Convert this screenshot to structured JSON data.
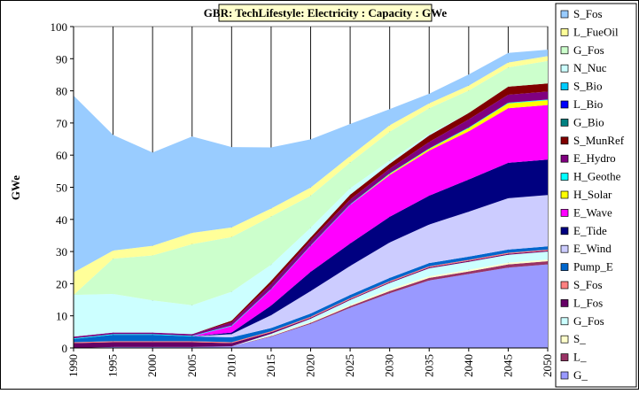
{
  "chart_data": {
    "type": "stacked_area",
    "title": "GBR: TechLifestyle: Electricity : Capacity : GWe",
    "y_label": "GWe",
    "x": [
      1990,
      1995,
      2000,
      2005,
      2010,
      2015,
      2020,
      2025,
      2030,
      2035,
      2040,
      2045,
      2050
    ],
    "xlim": [
      1990,
      2050
    ],
    "ylim": [
      0,
      100
    ],
    "yticks": [
      0,
      10,
      20,
      30,
      40,
      50,
      60,
      70,
      80,
      90,
      100
    ],
    "grid": "x",
    "legend": "right",
    "series": [
      {
        "name": "G_",
        "color": "#9999ff",
        "values": [
          0,
          0.3,
          0.3,
          0.3,
          0.5,
          3.5,
          7.5,
          12.5,
          17,
          21,
          23,
          25,
          26
        ]
      },
      {
        "name": "L_",
        "color": "#993366",
        "values": [
          0,
          0,
          0,
          0,
          0,
          0.2,
          0.3,
          0.5,
          0.7,
          0.8,
          0.8,
          1,
          1
        ]
      },
      {
        "name": "S_",
        "color": "#ffffcc",
        "values": [
          0,
          0,
          0,
          0,
          0,
          0.2,
          0.3,
          0.4,
          0.5,
          0.5,
          0.5,
          0.5,
          0.5
        ]
      },
      {
        "name": "G_Fos",
        "color": "#ccffff",
        "values": [
          0,
          0,
          0,
          0,
          0,
          0.5,
          1,
          1.5,
          2,
          2.5,
          2.5,
          2.5,
          2.5
        ]
      },
      {
        "name": "L_Fos",
        "color": "#660066",
        "values": [
          1.5,
          1.5,
          1.5,
          1.5,
          1,
          0.5,
          0.3,
          0.3,
          0.3,
          0.3,
          0.3,
          0.3,
          0.3
        ]
      },
      {
        "name": "S_Fos",
        "color": "#ff8080",
        "values": [
          0.3,
          0.3,
          0.3,
          0.3,
          0.3,
          0.3,
          0.3,
          0.3,
          0.3,
          0.3,
          0.3,
          0.3,
          0.3
        ]
      },
      {
        "name": "Pump_E",
        "color": "#0066cc",
        "values": [
          1,
          2,
          2,
          1.5,
          1.5,
          1,
          1,
          1,
          1,
          1,
          1,
          1,
          1
        ]
      },
      {
        "name": "E_Wind",
        "color": "#ccccff",
        "values": [
          0,
          0,
          0,
          0,
          1,
          4,
          7,
          9,
          11,
          12,
          14,
          16,
          16
        ]
      },
      {
        "name": "E_Tide",
        "color": "#000080",
        "values": [
          0,
          0,
          0,
          0,
          0.5,
          3,
          6,
          7,
          8,
          9,
          10,
          11,
          11
        ]
      },
      {
        "name": "E_Wave",
        "color": "#ff00ff",
        "values": [
          0,
          0,
          0,
          0,
          2,
          5,
          8,
          12,
          13,
          14,
          15,
          17,
          17
        ]
      },
      {
        "name": "H_Solar",
        "color": "#ffff00",
        "values": [
          0,
          0,
          0,
          0,
          0,
          0,
          0,
          0,
          0.3,
          0.5,
          1,
          1.5,
          1.5
        ]
      },
      {
        "name": "H_Geothe",
        "color": "#00ffff",
        "values": [
          0.2,
          0.2,
          0.2,
          0.2,
          0.2,
          0.2,
          0.2,
          0.2,
          0.2,
          0.2,
          0.2,
          0.2,
          0.2
        ]
      },
      {
        "name": "E_Hydro",
        "color": "#800080",
        "values": [
          0.5,
          0.5,
          0.5,
          0.5,
          1,
          1.5,
          1.5,
          1.5,
          1.5,
          2,
          2.5,
          2.5,
          2.5
        ]
      },
      {
        "name": "S_MunRef",
        "color": "#800000",
        "values": [
          0,
          0,
          0,
          0,
          0.5,
          1,
          1,
          1.5,
          1.5,
          2,
          2,
          2.5,
          2.5
        ]
      },
      {
        "name": "G_Bio",
        "color": "#008080",
        "values": [
          0,
          0,
          0,
          0,
          0,
          0,
          0,
          0,
          0,
          0,
          0,
          0,
          0
        ]
      },
      {
        "name": "L_Bio",
        "color": "#0000ff",
        "values": [
          0,
          0,
          0,
          0,
          0,
          0,
          0,
          0,
          0,
          0,
          0,
          0,
          0
        ]
      },
      {
        "name": "S_Bio",
        "color": "#00ccff",
        "values": [
          0,
          0,
          0,
          0,
          0,
          0,
          0,
          0,
          0,
          0,
          0,
          0,
          0
        ]
      },
      {
        "name": "N_Nuc",
        "color": "#ccffff",
        "values": [
          13,
          12,
          10,
          9,
          9,
          5,
          3,
          2,
          1,
          0.5,
          0,
          0,
          0
        ]
      },
      {
        "name": "G_Fos",
        "color": "#ccffcc",
        "values": [
          0,
          11,
          14,
          19,
          17,
          15,
          10,
          8,
          9,
          8,
          7,
          6,
          7
        ]
      },
      {
        "name": "L_FueOil",
        "color": "#ffff99",
        "values": [
          7,
          2.5,
          3,
          3.5,
          3,
          2.5,
          2.5,
          2,
          2,
          1.5,
          1.5,
          1.5,
          1.5
        ]
      },
      {
        "name": "S_Fos",
        "color": "#99ccff",
        "values": [
          55,
          36,
          29,
          30,
          25,
          19,
          15,
          10,
          5,
          3,
          3.5,
          3,
          2
        ]
      }
    ]
  }
}
